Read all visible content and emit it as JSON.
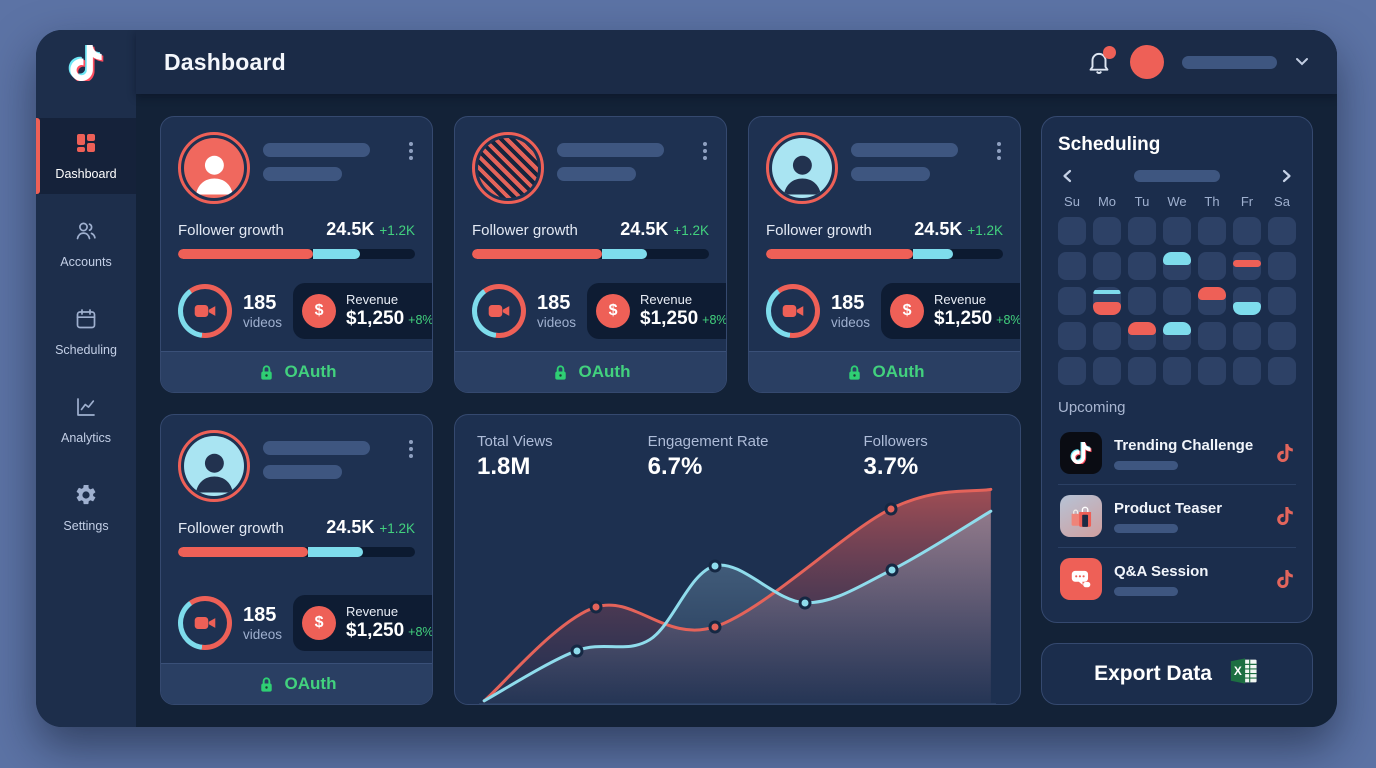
{
  "colors": {
    "accent_red": "#ee6057",
    "accent_cyan": "#7edcec",
    "positive_green": "#42d17e",
    "page_background": "#5c73a5",
    "frame_background": "#16253f",
    "card_background": "#1e3151",
    "excel_green": "#1d6f42"
  },
  "sidebar": {
    "logo": "tiktok-logo",
    "items": [
      {
        "label": "Dashboard",
        "icon": "dashboard-grid-icon",
        "active": true
      },
      {
        "label": "Accounts",
        "icon": "accounts-icon",
        "active": false
      },
      {
        "label": "Scheduling",
        "icon": "calendar-icon",
        "active": false
      },
      {
        "label": "Analytics",
        "icon": "analytics-icon",
        "active": false
      },
      {
        "label": "Settings",
        "icon": "gear-icon",
        "active": false
      }
    ]
  },
  "header": {
    "title": "Dashboard",
    "notification_badge": true,
    "user_name_skeleton": true
  },
  "accounts": {
    "cards": [
      {
        "avatar_variant": "person-salmon",
        "follower_label": "Follower growth",
        "follower_value": "24.5K",
        "follower_delta": "+1.2K",
        "videos_count": "185",
        "videos_label": "videos",
        "revenue_label": "Revenue",
        "revenue_value": "$1,250",
        "revenue_delta": "+8%",
        "oauth_label": "OAuth",
        "progress": {
          "red_pct": 57,
          "cyan_pct": 20
        }
      },
      {
        "avatar_variant": "hatch-salmon",
        "follower_label": "Follower growth",
        "follower_value": "24.5K",
        "follower_delta": "+1.2K",
        "videos_count": "185",
        "videos_label": "videos",
        "revenue_label": "Revenue",
        "revenue_value": "$1,250",
        "revenue_delta": "+8%",
        "oauth_label": "OAuth",
        "progress": {
          "red_pct": 55,
          "cyan_pct": 19
        }
      },
      {
        "avatar_variant": "person-cyan",
        "follower_label": "Follower growth",
        "follower_value": "24.5K",
        "follower_delta": "+1.2K",
        "videos_count": "185",
        "videos_label": "videos",
        "revenue_label": "Revenue",
        "revenue_value": "$1,250",
        "revenue_delta": "+8%",
        "oauth_label": "OAuth",
        "progress": {
          "red_pct": 62,
          "cyan_pct": 17
        }
      },
      {
        "avatar_variant": "person-cyan",
        "follower_label": "Follower growth",
        "follower_value": "24.5K",
        "follower_delta": "+1.2K",
        "videos_count": "185",
        "videos_label": "videos",
        "revenue_label": "Revenue",
        "revenue_value": "$1,250",
        "revenue_delta": "+8%",
        "oauth_label": "OAuth",
        "progress": {
          "red_pct": 55,
          "cyan_pct": 23
        }
      }
    ]
  },
  "chart_data": {
    "type": "area",
    "title": "",
    "xlabel": "",
    "ylabel": "",
    "grid": false,
    "legend": false,
    "axes_labeled": false,
    "coordinate_space": "normalized 0-100, y inverted (0 = top)",
    "stats": [
      {
        "label": "Total Views",
        "value": "1.8M"
      },
      {
        "label": "Engagement Rate",
        "value": "6.7%"
      },
      {
        "label": "Followers",
        "value": "3.7%"
      }
    ],
    "series": [
      {
        "name": "red-trend",
        "color": "#e4635a",
        "fill_top": "rgba(236,95,87,0.65)",
        "fill_bottom": "rgba(120,60,90,0.05)",
        "points": [
          [
            1,
            99
          ],
          [
            22.6,
            56
          ],
          [
            45.7,
            65
          ],
          [
            79.6,
            11
          ],
          [
            99,
            2
          ]
        ],
        "marker_indices": [
          1,
          2,
          3
        ]
      },
      {
        "name": "cyan-trend",
        "color": "#8fdcec",
        "fill_top": "rgba(150,195,220,0.45)",
        "fill_bottom": "rgba(150,195,220,0.03)",
        "points": [
          [
            1,
            99
          ],
          [
            18.9,
            76
          ],
          [
            33,
            71
          ],
          [
            45.7,
            37
          ],
          [
            63.1,
            54
          ],
          [
            79.8,
            39
          ],
          [
            99,
            12
          ]
        ],
        "marker_indices": [
          1,
          3,
          4,
          5
        ]
      }
    ]
  },
  "scheduling": {
    "title": "Scheduling",
    "nav": {
      "prev_icon": "chevron-left-icon",
      "next_icon": "chevron-right-icon",
      "range_skeleton": true
    },
    "weekdays": [
      "Su",
      "Mo",
      "Tu",
      "We",
      "Th",
      "Fr",
      "Sa"
    ],
    "calendar_cells": [
      [],
      [],
      [],
      [],
      [],
      [],
      [],
      [],
      [],
      [],
      [
        "cyan-top"
      ],
      [],
      [
        "red-mid"
      ],
      [],
      [],
      [
        "cyan-stripe",
        "red-bottom"
      ],
      [],
      [],
      [
        "red-top"
      ],
      [
        "cyan-bottom"
      ],
      [],
      [],
      [],
      [
        "red-top"
      ],
      [
        "cyan-top"
      ],
      [],
      [],
      [],
      [],
      [],
      [],
      [],
      [],
      [],
      []
    ]
  },
  "upcoming": {
    "title": "Upcoming",
    "items": [
      {
        "title": "Trending Challenge",
        "thumb": "tiktok-logo",
        "trailing_icon": "tiktok-note-icon"
      },
      {
        "title": "Product Teaser",
        "thumb": "shopping-bags",
        "trailing_icon": "tiktok-note-icon"
      },
      {
        "title": "Q&A Session",
        "thumb": "chat-bubbles",
        "trailing_icon": "tiktok-note-icon"
      }
    ]
  },
  "export_card": {
    "label": "Export Data",
    "icon": "excel-icon"
  }
}
